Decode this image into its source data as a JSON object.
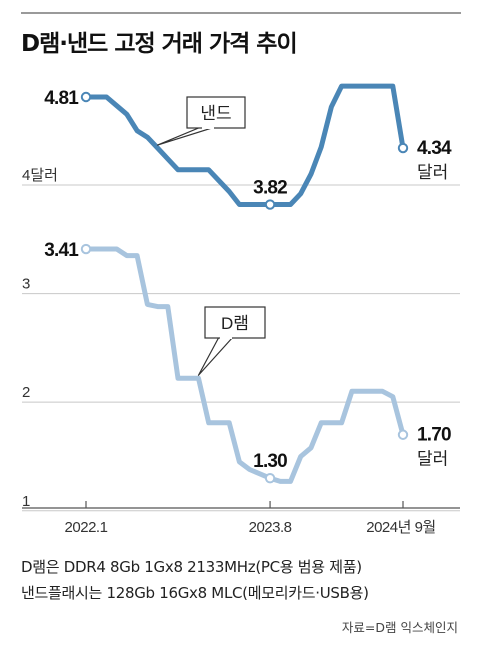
{
  "title": "D램·낸드 고정 거래 가격 추이",
  "colors": {
    "nand": "#4a86b6",
    "dram": "#a8c4de",
    "grid": "#c8c8c8",
    "axis": "#555555"
  },
  "chart_data": {
    "type": "line",
    "ylim": [
      0.8,
      5.2
    ],
    "yticks": [
      {
        "value": 4,
        "label": "4달러"
      },
      {
        "value": 3,
        "label": "3"
      },
      {
        "value": 2,
        "label": "2"
      },
      {
        "value": 1,
        "label": "1"
      }
    ],
    "xticks": [
      "2022.1",
      "2023.8",
      "2024년 9월"
    ],
    "series": [
      {
        "name": "낸드",
        "values": [
          4.81,
          4.81,
          4.81,
          4.73,
          4.65,
          4.5,
          4.44,
          4.34,
          4.24,
          4.14,
          4.14,
          4.14,
          4.14,
          4.04,
          3.94,
          3.82,
          3.82,
          3.82,
          3.82,
          3.82,
          3.82,
          3.92,
          4.1,
          4.35,
          4.72,
          4.91,
          4.91,
          4.91,
          4.91,
          4.91,
          4.91,
          4.34
        ],
        "labels": [
          {
            "index": 0,
            "text": "4.81"
          },
          {
            "index": 18,
            "text": "3.82"
          },
          {
            "index": 31,
            "text": "4.34",
            "unit": "달러"
          }
        ]
      },
      {
        "name": "D램",
        "values": [
          3.41,
          3.41,
          3.41,
          3.41,
          3.35,
          3.35,
          2.9,
          2.88,
          2.88,
          2.22,
          2.22,
          2.22,
          1.81,
          1.81,
          1.81,
          1.45,
          1.38,
          1.34,
          1.3,
          1.27,
          1.27,
          1.5,
          1.58,
          1.81,
          1.81,
          1.81,
          2.1,
          2.1,
          2.1,
          2.1,
          2.05,
          1.7
        ],
        "labels": [
          {
            "index": 0,
            "text": "3.41"
          },
          {
            "index": 18,
            "text": "1.30"
          },
          {
            "index": 31,
            "text": "1.70",
            "unit": "달러"
          }
        ]
      }
    ]
  },
  "notes": [
    "D램은 DDR4 8Gb 1Gx8 2133MHz(PC용 범용 제품)",
    "낸드플래시는 128Gb 16Gx8 MLC(메모리카드·USB용)"
  ],
  "source": "자료=D램 익스체인지"
}
